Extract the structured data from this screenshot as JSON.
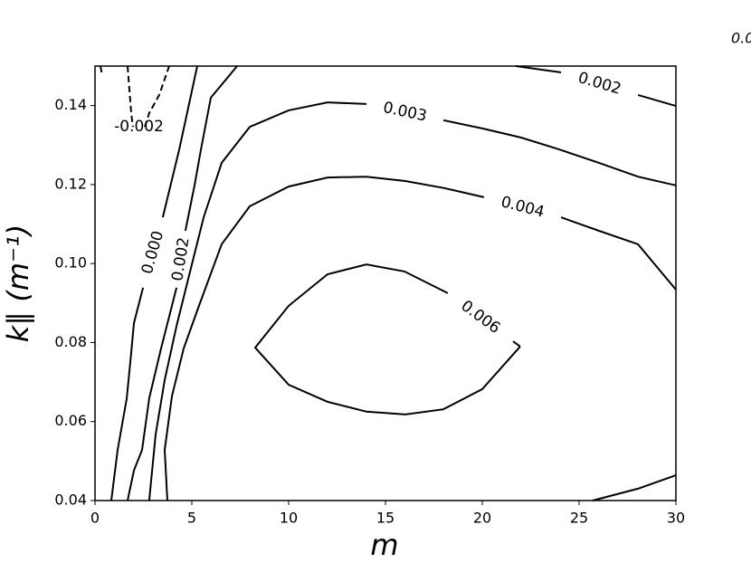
{
  "chart_data": {
    "type": "contour",
    "x_label": "m",
    "y_label": "k∥ (m⁻¹)",
    "annotation": "0.0",
    "xlim": [
      0,
      30
    ],
    "ylim": [
      0.04,
      0.15
    ],
    "xticks": [
      0,
      5,
      10,
      15,
      20,
      25,
      30
    ],
    "yticks": [
      0.04,
      0.06,
      0.08,
      {
        "value": 0.1,
        "label": "0.10"
      },
      0.12,
      0.14
    ],
    "color": "#000000",
    "contours": [
      {
        "level": -0.002,
        "x": [
          0.28,
          0.37
        ],
        "y": [
          0.15,
          0.1477
        ]
      },
      {
        "level": -0.002,
        "x": [
          1.68,
          1.78,
          1.87,
          1.96,
          null,
          2.57,
          2.8,
          3.32,
          3.83
        ],
        "y": [
          0.15,
          0.1438,
          0.1381,
          0.1346,
          null,
          0.1346,
          0.1381,
          0.1427,
          0.15
        ]
      },
      {
        "level": 0,
        "level_label": "0.000",
        "x": [
          0.84,
          1.17,
          1.64,
          1.87,
          2.01,
          2.48,
          null,
          3.5,
          4.35,
          5.28
        ],
        "y": [
          0.04,
          0.0528,
          0.0659,
          0.0774,
          0.0849,
          0.0939,
          null,
          0.1117,
          0.1289,
          0.15
        ]
      },
      {
        "level": 0.002,
        "x": [
          1.68,
          2.01,
          2.43,
          2.8,
          3.41,
          3.97,
          4.21,
          null,
          4.67,
          5.14,
          5.47,
          5.98,
          7.34
        ],
        "y": [
          0.04,
          0.0476,
          0.0528,
          0.0659,
          0.0785,
          0.0893,
          0.0939,
          null,
          0.1083,
          0.1198,
          0.1289,
          0.142,
          0.15
        ]
      },
      {
        "level": 0.002,
        "x": [
          21.73,
          24.07,
          null,
          28.04,
          30.0
        ],
        "y": [
          0.15,
          0.1484,
          null,
          0.1427,
          0.1399
        ]
      },
      {
        "level": 0.003,
        "x": [
          2.8,
          3.13,
          3.6,
          4.21,
          4.91,
          5.61,
          6.54,
          7.99,
          10.0,
          12.01,
          14.02,
          null,
          17.99,
          20.0,
          22.01,
          23.97,
          26.03,
          28.04,
          30.0
        ],
        "y": [
          0.04,
          0.0567,
          0.0705,
          0.0842,
          0.098,
          0.1117,
          0.1255,
          0.1346,
          0.1388,
          0.1408,
          0.1404,
          null,
          0.1363,
          0.1342,
          0.1319,
          0.1289,
          0.1255,
          0.122,
          0.1198
        ]
      },
      {
        "level": 0.004,
        "x": [
          3.74,
          3.6,
          3.97,
          4.58,
          5.37,
          6.54,
          7.99,
          10.0,
          12.01,
          14.02,
          16.03,
          18.04,
          20.09,
          null,
          24.07,
          26.03,
          28.04,
          30.0
        ],
        "y": [
          0.04,
          0.0528,
          0.0664,
          0.0785,
          0.0893,
          0.1049,
          0.1145,
          0.1195,
          0.1218,
          0.122,
          0.1209,
          0.1191,
          0.1168,
          null,
          0.1117,
          0.1083,
          0.1049,
          0.0934
        ]
      },
      {
        "level": 0.004,
        "x": [
          25.7,
          28.04,
          30.0
        ],
        "y": [
          0.04,
          0.043,
          0.0464
        ]
      },
      {
        "level": 0.006,
        "x": [
          21.96,
          20.0,
          17.99,
          16.03,
          14.02,
          12.01,
          10.0,
          8.27,
          10.0,
          12.01,
          14.02,
          15.98,
          18.22,
          null,
          21.59,
          21.96
        ],
        "y": [
          0.079,
          0.0682,
          0.0631,
          0.0618,
          0.0625,
          0.065,
          0.0693,
          0.0787,
          0.0893,
          0.0973,
          0.0998,
          0.098,
          0.0925,
          null,
          0.0803,
          0.079
        ]
      }
    ]
  }
}
